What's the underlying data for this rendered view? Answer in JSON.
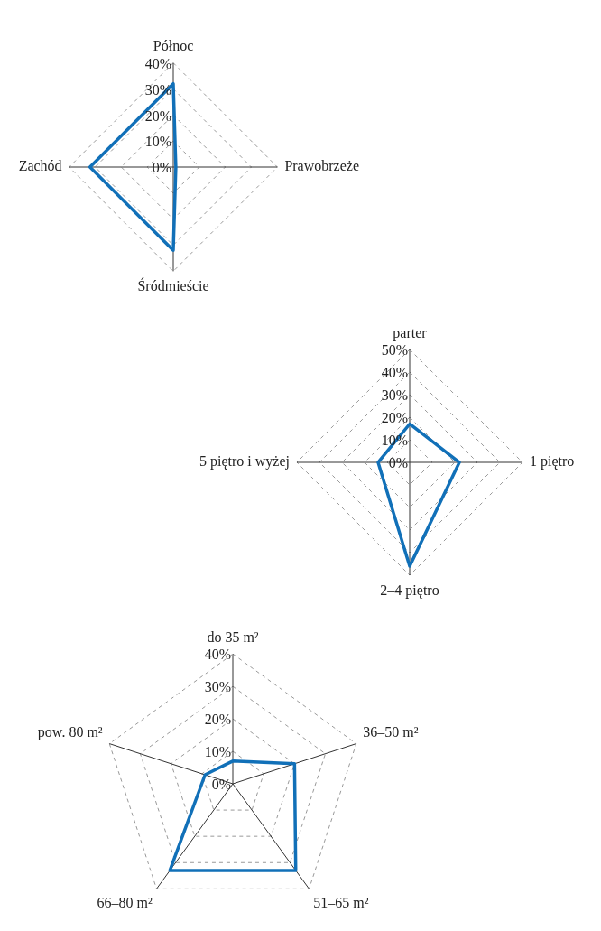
{
  "chart_data": [
    {
      "type": "radar",
      "categories": [
        "Północ",
        "Prawobrzeże",
        "Śródmieście",
        "Zachód"
      ],
      "series": [
        {
          "color": "#1170b8",
          "values": [
            32,
            1,
            32,
            32
          ]
        }
      ],
      "ylim": [
        0,
        40
      ],
      "yticks": [
        {
          "value": 0,
          "label": "0%"
        },
        {
          "value": 10,
          "label": "10%"
        },
        {
          "value": 20,
          "label": "20%"
        },
        {
          "value": 30,
          "label": "30%"
        },
        {
          "value": 40,
          "label": "40%"
        }
      ],
      "grid": true,
      "legend": false,
      "marker": "none"
    },
    {
      "type": "radar",
      "categories": [
        "parter",
        "1 piętro",
        "2–4 piętro",
        "5 piętro i wyżej"
      ],
      "series": [
        {
          "color": "#1170b8",
          "values": [
            17,
            22,
            46,
            14
          ]
        }
      ],
      "ylim": [
        0,
        50
      ],
      "yticks": [
        {
          "value": 0,
          "label": "0%"
        },
        {
          "value": 10,
          "label": "10%"
        },
        {
          "value": 20,
          "label": "20%"
        },
        {
          "value": 30,
          "label": "30%"
        },
        {
          "value": 40,
          "label": "40%"
        },
        {
          "value": 50,
          "label": "50%"
        }
      ],
      "grid": true,
      "legend": false,
      "marker": "none"
    },
    {
      "type": "radar",
      "categories": [
        "do 35 m²",
        "36–50 m²",
        "51–65 m²",
        "66–80 m²",
        "pow. 80 m²"
      ],
      "series": [
        {
          "color": "#1170b8",
          "values": [
            7,
            20,
            33,
            33,
            9
          ]
        }
      ],
      "ylim": [
        0,
        40
      ],
      "yticks": [
        {
          "value": 0,
          "label": "0%"
        },
        {
          "value": 10,
          "label": "10%"
        },
        {
          "value": 20,
          "label": "20%"
        },
        {
          "value": 30,
          "label": "30%"
        },
        {
          "value": 40,
          "label": "40%"
        }
      ],
      "grid": true,
      "legend": false,
      "marker": "none"
    }
  ]
}
